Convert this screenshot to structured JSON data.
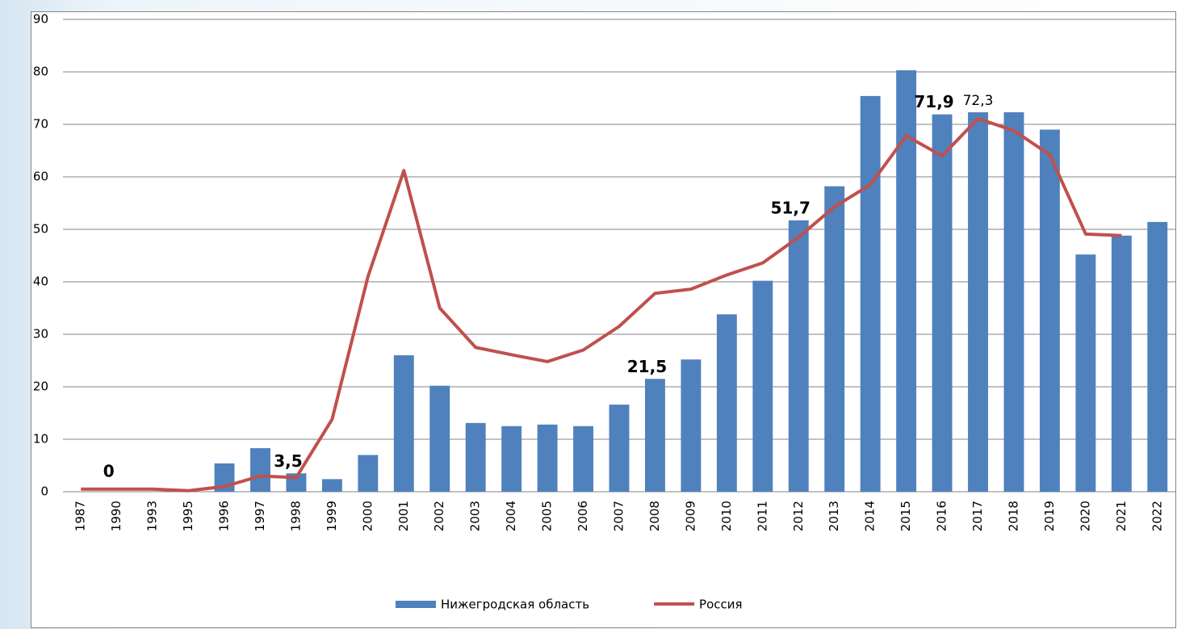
{
  "chart_data": {
    "type": "bar_line",
    "categories": [
      "1987",
      "1990",
      "1993",
      "1995",
      "1996",
      "1997",
      "1998",
      "1999",
      "2000",
      "2001",
      "2002",
      "2003",
      "2004",
      "2005",
      "2006",
      "2007",
      "2008",
      "2009",
      "2010",
      "2011",
      "2012",
      "2013",
      "2014",
      "2015",
      "2016",
      "2017",
      "2018",
      "2019",
      "2020",
      "2021",
      "2022"
    ],
    "series": [
      {
        "name": "Нижегродская область",
        "type": "bar",
        "color": "#4f81bd",
        "values": [
          0,
          0,
          0,
          0,
          5.4,
          8.3,
          3.5,
          2.4,
          7.0,
          26,
          20.2,
          13.1,
          12.5,
          12.8,
          12.5,
          16.6,
          21.5,
          25.2,
          33.8,
          40.2,
          51.7,
          58.2,
          75.4,
          80.3,
          71.9,
          72.3,
          72.3,
          69,
          45.2,
          48.8,
          51.4
        ],
        "value_labels": [
          null,
          "0",
          null,
          null,
          null,
          null,
          "3,5",
          null,
          null,
          null,
          null,
          null,
          null,
          null,
          null,
          null,
          "21,5",
          null,
          null,
          null,
          "51,7",
          null,
          null,
          null,
          "71,9",
          "72,3",
          null,
          null,
          null,
          null,
          null
        ]
      },
      {
        "name": "Россия",
        "type": "line",
        "color": "#c0504d",
        "values": [
          0.5,
          0.5,
          0.5,
          0.2,
          1.0,
          3.0,
          2.7,
          13.8,
          41,
          61.2,
          35,
          27.5,
          26.1,
          24.8,
          27,
          31.5,
          37.8,
          38.6,
          41.3,
          43.6,
          48.5,
          54.3,
          58.5,
          67.8,
          64,
          71.1,
          68.8,
          64.2,
          49.1,
          48.8,
          null
        ]
      }
    ],
    "ylim": [
      0,
      90
    ],
    "yticks": [
      0,
      10,
      20,
      30,
      40,
      50,
      60,
      70,
      80,
      90
    ],
    "grid": true,
    "legend": "bottom"
  }
}
